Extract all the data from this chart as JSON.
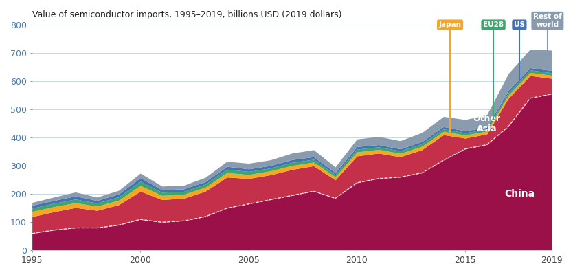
{
  "title": "Value of semiconductor imports, 1995–2019, billions USD (2019 dollars)",
  "years": [
    1995,
    1996,
    1997,
    1998,
    1999,
    2000,
    2001,
    2002,
    2003,
    2004,
    2005,
    2006,
    2007,
    2008,
    2009,
    2010,
    2011,
    2012,
    2013,
    2014,
    2015,
    2016,
    2017,
    2018,
    2019
  ],
  "china": [
    60,
    72,
    80,
    80,
    90,
    110,
    100,
    105,
    120,
    150,
    165,
    180,
    195,
    210,
    185,
    240,
    255,
    260,
    275,
    320,
    360,
    375,
    440,
    540,
    555
  ],
  "other_asia": [
    60,
    65,
    72,
    62,
    72,
    100,
    80,
    80,
    90,
    110,
    90,
    88,
    92,
    90,
    65,
    95,
    90,
    72,
    82,
    90,
    38,
    38,
    100,
    80,
    55
  ],
  "japan": [
    18,
    18,
    17,
    15,
    16,
    20,
    15,
    14,
    14,
    16,
    14,
    14,
    14,
    13,
    11,
    14,
    13,
    12,
    12,
    12,
    11,
    10,
    11,
    11,
    11
  ],
  "eu28": [
    12,
    12,
    13,
    11,
    12,
    15,
    11,
    10,
    11,
    12,
    11,
    10,
    11,
    10,
    8,
    10,
    9,
    9,
    9,
    9,
    8,
    8,
    9,
    9,
    9
  ],
  "us": [
    10,
    10,
    11,
    9,
    10,
    13,
    9,
    9,
    9,
    10,
    9,
    9,
    10,
    9,
    7,
    9,
    8,
    7,
    8,
    8,
    7,
    7,
    8,
    8,
    8
  ],
  "rest_of_world": [
    10,
    12,
    14,
    12,
    13,
    16,
    13,
    13,
    15,
    18,
    20,
    20,
    23,
    25,
    20,
    27,
    29,
    29,
    32,
    36,
    40,
    43,
    60,
    66,
    72
  ],
  "colors": {
    "china": "#9B1048",
    "other_asia": "#C4304A",
    "japan": "#F5A623",
    "eu28": "#3CA66C",
    "us": "#4472B8",
    "rest_of_world": "#8A9BAE"
  },
  "ylim": [
    0,
    800
  ],
  "yticks": [
    0,
    100,
    200,
    300,
    400,
    500,
    600,
    700,
    800
  ],
  "background_color": "#FFFFFF",
  "annotations": {
    "japan": {
      "x": 2014.3,
      "label": "Japan",
      "color": "#F5A623",
      "layer_idx": 2
    },
    "eu28": {
      "x": 2016.3,
      "label": "EU28",
      "color": "#3CA66C",
      "layer_idx": 3
    },
    "us": {
      "x": 2017.5,
      "label": "US",
      "color": "#4472B8",
      "layer_idx": 4
    },
    "row": {
      "x": 2018.8,
      "label": "Rest of\nworld",
      "color": "#8A9BAE",
      "layer_idx": 5
    }
  }
}
